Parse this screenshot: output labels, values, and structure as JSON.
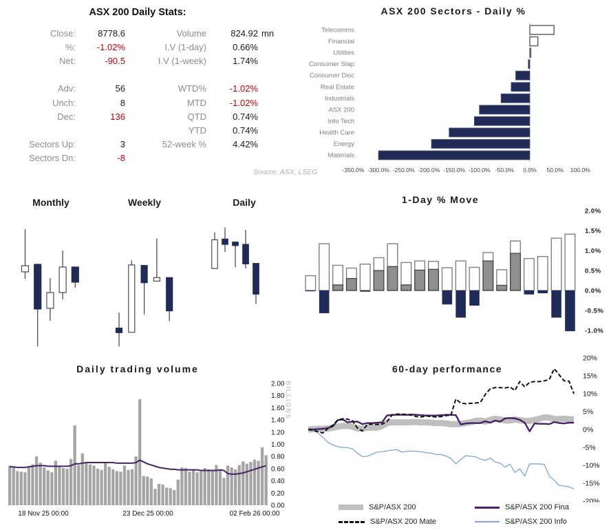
{
  "colors": {
    "navy": "#212b58",
    "bar_gray": "#8f8f8f",
    "bar_gray_border": "#3f3f3f",
    "white_bar_border": "#808080",
    "volume_gray": "#a5a5a5",
    "purple": "#452363",
    "light_blue": "#7ca6dc",
    "band_gray": "#bfbfbf",
    "label_gray": "#7f7f7f",
    "red": "#c00000",
    "axis_text": "#1a1a1a"
  },
  "stats": {
    "title": "ASX 200 Daily Stats:",
    "source": "Source: ASX, LSEG",
    "rows": [
      {
        "l": "Close:",
        "lv": "8778.6",
        "ln": false,
        "r": "Volume",
        "rv": "824.92",
        "rn": false,
        "unit": "mn"
      },
      {
        "l": "%:",
        "lv": "-1.02%",
        "ln": true,
        "r": "I.V (1-day)",
        "rv": "0.66%",
        "rn": false,
        "unit": ""
      },
      {
        "l": "Net:",
        "lv": "-90.5",
        "ln": true,
        "r": "I.V (1-week)",
        "rv": "1.74%",
        "rn": false,
        "unit": ""
      },
      {
        "l": "",
        "lv": "",
        "ln": false,
        "r": "",
        "rv": "",
        "rn": false,
        "unit": ""
      },
      {
        "l": "Adv:",
        "lv": "56",
        "ln": false,
        "r": "WTD%",
        "rv": "-1.02%",
        "rn": true,
        "unit": ""
      },
      {
        "l": "Unch:",
        "lv": "8",
        "ln": false,
        "r": "MTD",
        "rv": "-1.02%",
        "rn": true,
        "unit": ""
      },
      {
        "l": "Dec:",
        "lv": "136",
        "ln": true,
        "r": "QTD",
        "rv": "0.74%",
        "rn": false,
        "unit": ""
      },
      {
        "l": "",
        "lv": "",
        "ln": false,
        "r": "YTD",
        "rv": "0.74%",
        "rn": false,
        "unit": ""
      },
      {
        "l": "Sectors Up:",
        "lv": "3",
        "ln": false,
        "r": "52-week %",
        "rv": "4.42%",
        "rn": false,
        "unit": ""
      },
      {
        "l": "Sectors Dn:",
        "lv": "-8",
        "ln": true,
        "r": "",
        "rv": "",
        "rn": false,
        "unit": ""
      }
    ]
  },
  "chart_data": [
    {
      "id": "sectors",
      "type": "bar",
      "orientation": "horizontal",
      "title": "ASX 200 Sectors - Daily %",
      "categories": [
        "Telecomms",
        "Financial",
        "Utilities",
        "Consumer Stap",
        "Consumer Disc",
        "Real Estate",
        "Industrials",
        "ASX 200",
        "Info Tech",
        "Health Care",
        "Energy",
        "Materials"
      ],
      "values": [
        48,
        16,
        2,
        -3,
        -28,
        -37,
        -57,
        -100,
        -110,
        -160,
        -195,
        -300
      ],
      "xticks": [
        "-350.0%",
        "-300.0%",
        "-250.0%",
        "-200.0%",
        "-150.0%",
        "-100.0%",
        "-50.0%",
        "0.0%",
        "50.0%",
        "100.0%"
      ],
      "xtick_values": [
        -350,
        -300,
        -250,
        -200,
        -150,
        -100,
        -50,
        0,
        50,
        100
      ],
      "xlim": [
        -350,
        100
      ]
    },
    {
      "id": "candles",
      "type": "candlestick",
      "panels": [
        {
          "title": "Monthly",
          "candles": [
            {
              "o": 62.9,
              "h": 98.3,
              "l": 57.1,
              "c": 68.0
            },
            {
              "o": 69.1,
              "h": 69.7,
              "l": 1.1,
              "c": 32.0
            },
            {
              "o": 32.6,
              "h": 57.7,
              "l": 22.3,
              "c": 45.7
            },
            {
              "o": 45.7,
              "h": 80.6,
              "l": 40.0,
              "c": 66.9
            },
            {
              "o": 66.9,
              "h": 66.9,
              "l": 49.7,
              "c": 54.3
            }
          ]
        },
        {
          "title": "Weekly",
          "candles": [
            {
              "o": 16.2,
              "h": 29.1,
              "l": 1.0,
              "c": 12.4
            },
            {
              "o": 12.7,
              "h": 72.4,
              "l": 12.7,
              "c": 68.6
            },
            {
              "o": 68.2,
              "h": 68.2,
              "l": 27.6,
              "c": 53.9
            },
            {
              "o": 55.2,
              "h": 90.5,
              "l": 55.2,
              "c": 58.1
            },
            {
              "o": 58.1,
              "h": 58.1,
              "l": 21.9,
              "c": 30.5
            }
          ]
        },
        {
          "title": "Daily",
          "candles": [
            {
              "o": 65.7,
              "h": 95.8,
              "l": 65.7,
              "c": 89.5
            },
            {
              "o": 90.1,
              "h": 99.6,
              "l": 79.4,
              "c": 85.7
            },
            {
              "o": 87.6,
              "h": 87.6,
              "l": 66.7,
              "c": 84.7
            },
            {
              "o": 85.7,
              "h": 97.7,
              "l": 65.7,
              "c": 69.5
            },
            {
              "o": 69.9,
              "h": 69.9,
              "l": 36.2,
              "c": 44.4
            }
          ]
        }
      ],
      "ylim": [
        0,
        100
      ]
    },
    {
      "id": "one_day_move",
      "type": "bar",
      "title": "1-Day % Move",
      "bars": [
        {
          "high": 0.37,
          "gray": 0,
          "low": -0.02
        },
        {
          "high": 1.17,
          "gray": 0,
          "low": -0.57
        },
        {
          "high": 0.63,
          "gray": 0.14,
          "low": 0
        },
        {
          "high": 0.56,
          "gray": 0.3,
          "low": 0
        },
        {
          "high": 0.66,
          "gray": 0,
          "low": -0.03
        },
        {
          "high": 0.82,
          "gray": 0.5,
          "low": 0
        },
        {
          "high": 1.17,
          "gray": 0.6,
          "low": 0
        },
        {
          "high": 0.7,
          "gray": 0.14,
          "low": 0
        },
        {
          "high": 0.74,
          "gray": 0.51,
          "low": 0
        },
        {
          "high": 0.73,
          "gray": 0.53,
          "low": 0
        },
        {
          "high": 0.57,
          "gray": 0,
          "low": -0.35
        },
        {
          "high": 0.74,
          "gray": 0,
          "low": -0.68
        },
        {
          "high": 0.58,
          "gray": 0,
          "low": -0.38
        },
        {
          "high": 0.95,
          "gray": 0.74,
          "low": 0
        },
        {
          "high": 0.52,
          "gray": 0.13,
          "low": 0
        },
        {
          "high": 1.24,
          "gray": 0.93,
          "low": 0
        },
        {
          "high": 0.8,
          "gray": 0,
          "low": -0.1
        },
        {
          "high": 0.85,
          "gray": 0,
          "low": -0.07
        },
        {
          "high": 1.31,
          "gray": 0,
          "low": -0.68
        },
        {
          "high": 1.41,
          "gray": 0,
          "low": -1.02
        }
      ],
      "yticks": [
        "2.0%",
        "1.5%",
        "1.0%",
        "0.5%",
        "0.0%",
        "-0.5%",
        "-1.0%"
      ],
      "ytick_values": [
        2,
        1.5,
        1,
        0.5,
        0,
        -0.5,
        -1
      ],
      "ylim": [
        -1.35,
        2.0
      ]
    },
    {
      "id": "volume",
      "type": "bar+line",
      "title": "Daily trading volume",
      "ylabel": "BILLIONS",
      "values": [
        0.65,
        0.62,
        0.56,
        0.55,
        0.54,
        0.63,
        0.67,
        0.8,
        0.7,
        0.62,
        0.57,
        0.54,
        0.73,
        0.63,
        0.61,
        0.6,
        0.76,
        1.31,
        0.66,
        0.85,
        0.69,
        0.67,
        0.65,
        0.6,
        0.58,
        0.7,
        0.63,
        0.59,
        0.56,
        0.55,
        0.65,
        0.58,
        0.59,
        0.8,
        1.74,
        0.48,
        0.47,
        0.44,
        0.27,
        0.35,
        0.34,
        0.29,
        0.28,
        0.25,
        0.42,
        0.62,
        0.61,
        0.55,
        0.57,
        0.54,
        0.56,
        0.61,
        0.59,
        0.56,
        0.66,
        0.59,
        0.45,
        0.65,
        0.62,
        0.59,
        0.66,
        0.72,
        0.68,
        0.71,
        0.75,
        0.73,
        0.95,
        0.82
      ],
      "ma_line": [
        0.63,
        0.63,
        0.62,
        0.62,
        0.62,
        0.63,
        0.64,
        0.65,
        0.65,
        0.65,
        0.64,
        0.64,
        0.64,
        0.64,
        0.64,
        0.64,
        0.65,
        0.68,
        0.68,
        0.69,
        0.7,
        0.7,
        0.7,
        0.7,
        0.7,
        0.7,
        0.7,
        0.7,
        0.69,
        0.69,
        0.69,
        0.69,
        0.69,
        0.7,
        0.74,
        0.71,
        0.68,
        0.66,
        0.64,
        0.62,
        0.61,
        0.6,
        0.59,
        0.59,
        0.58,
        0.58,
        0.58,
        0.58,
        0.58,
        0.58,
        0.57,
        0.57,
        0.57,
        0.57,
        0.57,
        0.58,
        0.57,
        0.52,
        0.51,
        0.51,
        0.52,
        0.53,
        0.55,
        0.57,
        0.59,
        0.61,
        0.63,
        0.65
      ],
      "yticks": [
        "2.00",
        "1.80",
        "1.60",
        "1.40",
        "1.20",
        "1.00",
        "0.80",
        "0.60",
        "0.40",
        "0.20",
        "0.00"
      ],
      "ytick_values": [
        2.0,
        1.8,
        1.6,
        1.4,
        1.2,
        1.0,
        0.8,
        0.6,
        0.4,
        0.2,
        0.0
      ],
      "xlabels": [
        "18 Nov 25 00:00",
        "23 Dec 25 00:00",
        "02 Feb 26 00:00"
      ],
      "ylim": [
        0,
        2.0
      ]
    },
    {
      "id": "performance",
      "type": "line",
      "title": "60-day performance",
      "series": [
        {
          "name": "S&P/ASX 200",
          "style": "band",
          "values": [
            0,
            0.1,
            0.2,
            0.2,
            0.3,
            0.5,
            0.8,
            1.0,
            1.0,
            0.8,
            0.3,
            0.2,
            0.5,
            0.5,
            0.5,
            1.0,
            1.8,
            2.0,
            2.0,
            2.0,
            2.0,
            2.1,
            2.1,
            2.0,
            2.0,
            1.9,
            1.8,
            1.8,
            1.7,
            1.5,
            1.5,
            1.6,
            1.8,
            2.0,
            2.4,
            2.5,
            2.2,
            2.7,
            3.0,
            2.8,
            2.5,
            2.5,
            2.8,
            2.6,
            2.4,
            2.4,
            2.7,
            3.0,
            3.4,
            3.3,
            2.9,
            2.9,
            3.0,
            2.9,
            2.8
          ]
        },
        {
          "name": "S&P/ASX 200 Info",
          "style": "thin-blue",
          "values": [
            0,
            -0.3,
            -1.0,
            -2.2,
            -3.6,
            -4.3,
            -4.8,
            -5.0,
            -5.1,
            -5.4,
            -6.6,
            -7.6,
            -7.5,
            -6.9,
            -6.3,
            -6.2,
            -6.0,
            -5.8,
            -5.6,
            -6.3,
            -6.1,
            -6.0,
            -6.1,
            -6.2,
            -6.5,
            -6.6,
            -7.0,
            -7.0,
            -7.4,
            -8.1,
            -9.6,
            -8.4,
            -7.3,
            -7.5,
            -7.6,
            -8.3,
            -8.6,
            -8.0,
            -9.1,
            -9.4,
            -10.5,
            -9.7,
            -12.0,
            -11.0,
            -13.0,
            -9.6,
            -9.6,
            -9.6,
            -9.8,
            -13.0,
            -14.2,
            -15.6,
            -15.8,
            -16.0,
            -16.6
          ]
        },
        {
          "name": "S&P/ASX 200 Fina",
          "style": "solid-purple",
          "values": [
            0,
            0,
            0.1,
            0.2,
            0.4,
            0.9,
            2.6,
            2.8,
            2.0,
            2.2,
            2.2,
            1.5,
            1.8,
            1.8,
            1.9,
            2.0,
            3.9,
            4.1,
            4.1,
            4.1,
            4.1,
            4.2,
            4.1,
            4.0,
            3.9,
            3.9,
            3.9,
            4.0,
            4.1,
            4.1,
            4.0,
            1.4,
            1.7,
            1.8,
            1.8,
            1.8,
            2.3,
            1.9,
            2.5,
            2.2,
            3.1,
            3.2,
            3.1,
            2.7,
            1.9,
            -0.5,
            1.7,
            1.6,
            1.6,
            1.5,
            2.1,
            1.8,
            1.7,
            1.9,
            1.9
          ]
        },
        {
          "name": "S&P/ASX 200 Mate",
          "style": "dashed-black",
          "values": [
            0,
            -0.2,
            -0.6,
            -1.0,
            0.3,
            1.2,
            2.7,
            3.0,
            2.9,
            2.4,
            0.4,
            -0.4,
            1.4,
            1.5,
            1.4,
            1.5,
            2.2,
            4.0,
            4.3,
            4.3,
            4.2,
            4.0,
            3.6,
            3.5,
            3.8,
            3.6,
            3.5,
            3.6,
            3.9,
            4.0,
            8.5,
            7.4,
            7.2,
            7.3,
            7.4,
            7.6,
            9.8,
            11.4,
            11.7,
            11.7,
            11.6,
            11.9,
            10.9,
            13.4,
            11.9,
            13.2,
            13.4,
            13.4,
            13.6,
            14.0,
            17.0,
            15.3,
            13.6,
            13.5,
            10.0
          ]
        }
      ],
      "yticks": [
        "20%",
        "15%",
        "10%",
        "5%",
        "0%",
        "-5%",
        "-10%",
        "-15%",
        "-20%"
      ],
      "ytick_values": [
        20,
        15,
        10,
        5,
        0,
        -5,
        -10,
        -15,
        -20
      ],
      "ylim": [
        -20,
        20
      ],
      "legend": [
        "S&P/ASX 200",
        "S&P/ASX 200 Fina",
        "S&P/ASX 200 Mate",
        "S&P/ASX 200 Info"
      ],
      "legend_position": "bottom"
    }
  ]
}
